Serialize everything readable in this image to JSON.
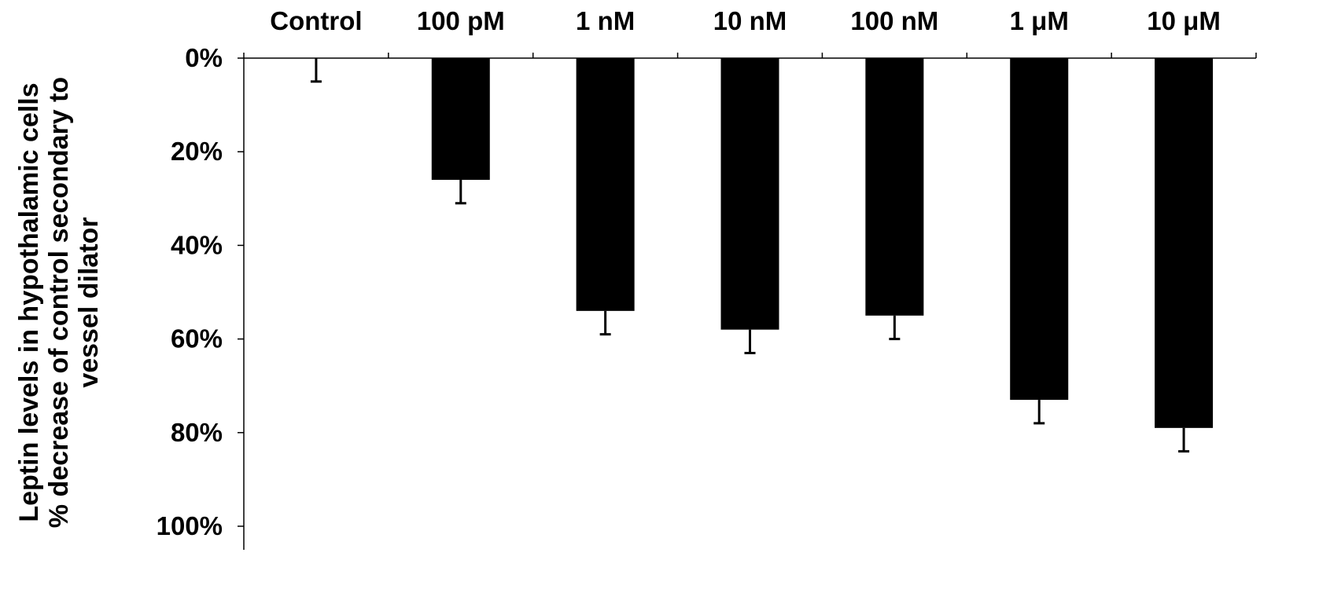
{
  "chart_data": {
    "type": "bar",
    "title": "",
    "xlabel": "",
    "ylabel_lines": [
      "Leptin levels in hypothalamic cells",
      "% decrease of control secondary to",
      "vessel dilator"
    ],
    "categories": [
      "Control",
      "100 pM",
      "1 nM",
      "10 nM",
      "100 nM",
      "1 μM",
      "10 μM"
    ],
    "values": [
      0,
      26,
      54,
      58,
      55,
      73,
      79
    ],
    "errors": [
      5,
      5,
      5,
      5,
      5,
      5,
      5
    ],
    "ylim": [
      0,
      100
    ],
    "yticks": [
      0,
      20,
      40,
      60,
      80,
      100
    ],
    "ytick_labels": [
      "0%",
      "20%",
      "40%",
      "60%",
      "80%",
      "100%"
    ],
    "y_axis_inverted": true,
    "category_labels_position": "top",
    "grid": false,
    "legend": "none",
    "bar_color": "#000000"
  }
}
